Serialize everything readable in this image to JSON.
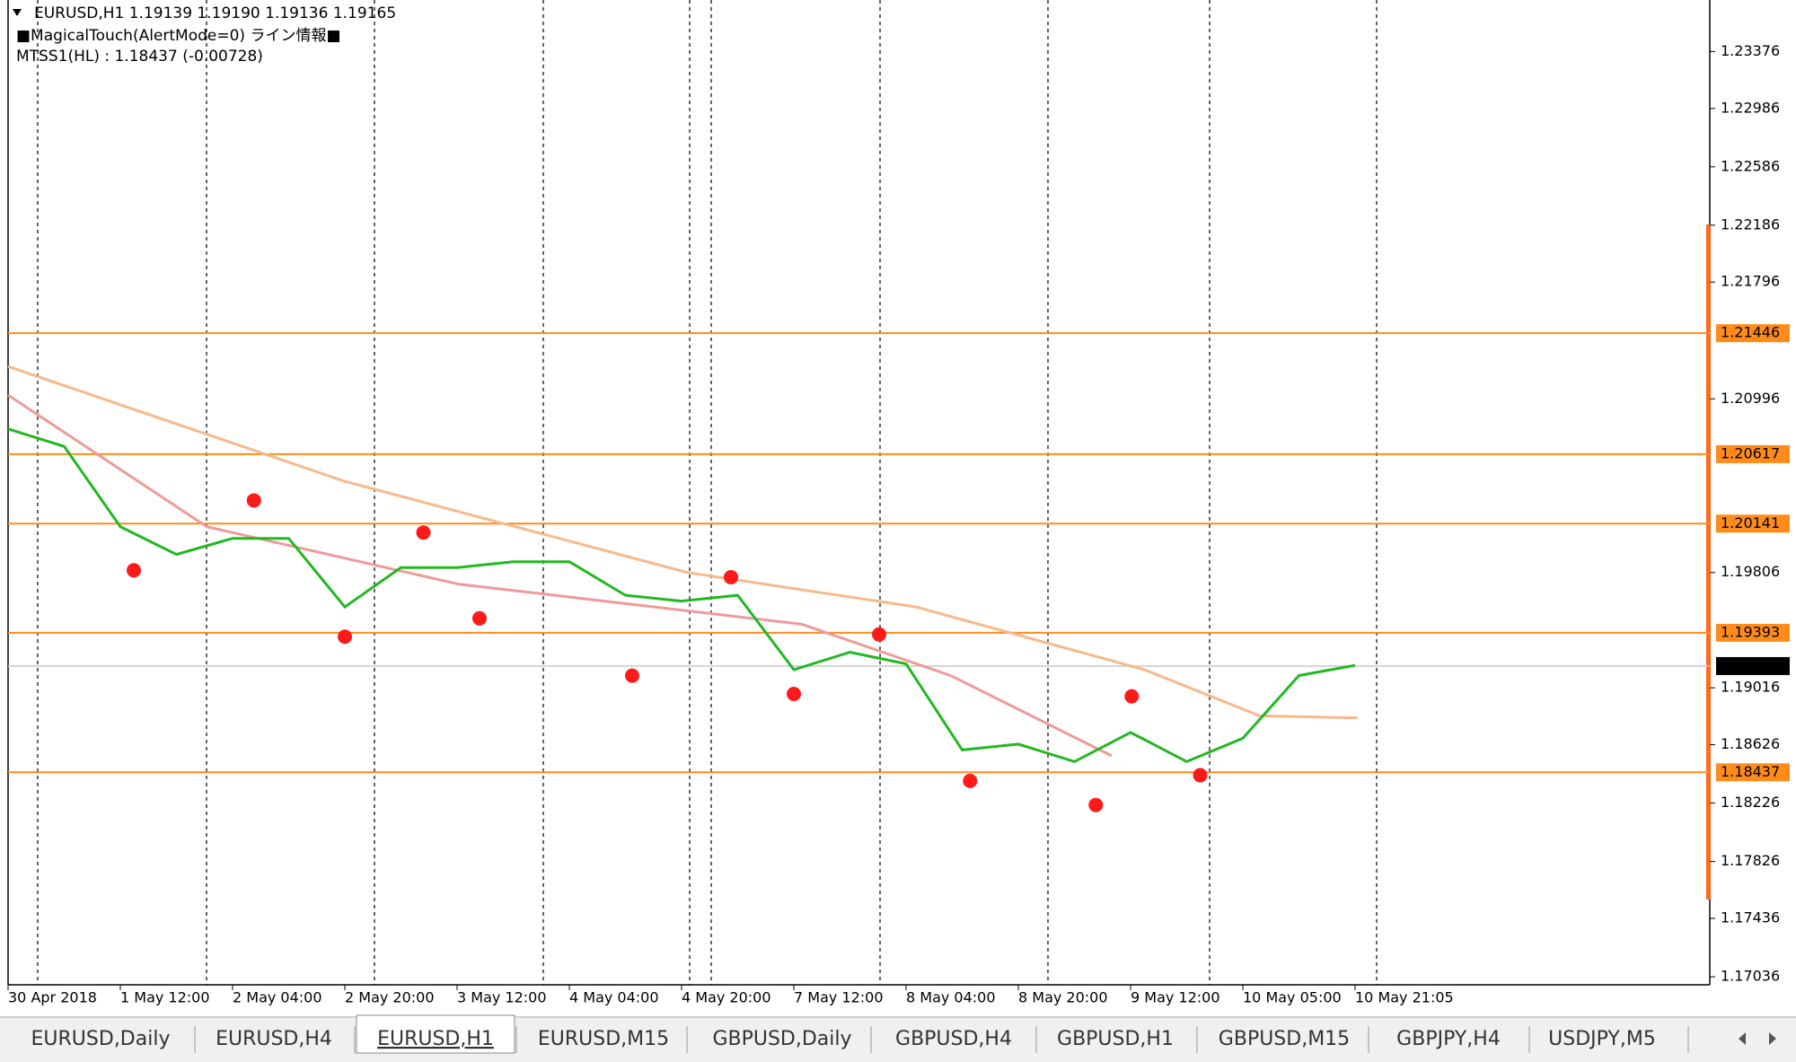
{
  "header": {
    "symbol_line": "EURUSD,H1  1.19139 1.19190 1.19136 1.19165",
    "indicator_1": "■MagicalTouch(AlertMode=0) ライン情報■",
    "indicator_2": "MTSS1(HL) : 1.18437 (-0.00728)"
  },
  "chart_data": {
    "type": "line",
    "xlim": [
      0,
      15.16
    ],
    "ylim": [
      1.16981,
      1.23729
    ],
    "yticks": [
      1.23376,
      1.22986,
      1.22586,
      1.22186,
      1.21796,
      1.20996,
      1.19806,
      1.19016,
      1.18626,
      1.18226,
      1.17826,
      1.17436,
      1.17036
    ],
    "xticks": [
      {
        "value": 0,
        "label": "30 Apr 2018"
      },
      {
        "value": 1,
        "label": "1 May 12:00"
      },
      {
        "value": 2,
        "label": "2 May 04:00"
      },
      {
        "value": 3,
        "label": "2 May 20:00"
      },
      {
        "value": 4,
        "label": "3 May 12:00"
      },
      {
        "value": 5,
        "label": "4 May 04:00"
      },
      {
        "value": 6,
        "label": "4 May 20:00"
      },
      {
        "value": 7,
        "label": "7 May 12:00"
      },
      {
        "value": 8,
        "label": "8 May 04:00"
      },
      {
        "value": 9,
        "label": "8 May 20:00"
      },
      {
        "value": 10,
        "label": "9 May 12:00"
      },
      {
        "value": 11,
        "label": "10 May 05:00"
      },
      {
        "value": 12,
        "label": "10 May 21:05"
      }
    ],
    "hlines": [
      1.21446,
      1.20617,
      1.20141,
      1.19393,
      1.18437
    ],
    "hline_color": "#ff8c1a",
    "current_price": 1.19165,
    "series": [
      {
        "color": "#f7b98a",
        "x": [
          0,
          2.99,
          6.05,
          8.09,
          10.13,
          11.15,
          12.02
        ],
        "values": [
          1.21218,
          1.20433,
          1.19806,
          1.1957,
          1.19138,
          1.18824,
          1.18809
        ]
      },
      {
        "color": "#ef9a9a",
        "x": [
          0,
          1.77,
          4.01,
          7.07,
          8.4,
          9.83
        ],
        "values": [
          1.21022,
          1.2012,
          1.19727,
          1.19452,
          1.19099,
          1.1855
        ]
      },
      {
        "color": "#22b822",
        "x": [
          0,
          0.5,
          1,
          1.5,
          2,
          2.5,
          3,
          3.5,
          4,
          4.5,
          5,
          5.5,
          6,
          6.5,
          7,
          7.5,
          8,
          8.5,
          9,
          9.5,
          10,
          10.5,
          11,
          11.5,
          12
        ],
        "values": [
          1.2079,
          1.2067,
          1.2012,
          1.1993,
          1.2004,
          1.2004,
          1.1957,
          1.1984,
          1.1984,
          1.1988,
          1.1988,
          1.1965,
          1.1961,
          1.1965,
          1.1914,
          1.1926,
          1.1918,
          1.1859,
          1.1863,
          1.1851,
          1.1871,
          1.1851,
          1.1867,
          1.191,
          1.1917
        ]
      },
      {
        "color": "#ff1a1a",
        "style": "dot",
        "x": [
          1.12,
          2.19,
          3.0,
          3.7,
          4.2,
          5.56,
          6.44,
          7.0,
          7.76,
          8.57,
          9.69,
          10.01,
          10.62
        ],
        "values": [
          1.19821,
          1.203,
          1.19366,
          1.2008,
          1.19492,
          1.19099,
          1.19774,
          1.18974,
          1.19382,
          1.18378,
          1.18213,
          1.18958,
          1.18417
        ]
      }
    ]
  },
  "tabs": {
    "items": [
      "EURUSD,Daily",
      "EURUSD,H4",
      "EURUSD,H1",
      "EURUSD,M15",
      "GBPUSD,Daily",
      "GBPUSD,H4",
      "GBPUSD,H1",
      "GBPUSD,M15",
      "GBPJPY,H4",
      "USDJPY,M5"
    ],
    "active": 2
  }
}
